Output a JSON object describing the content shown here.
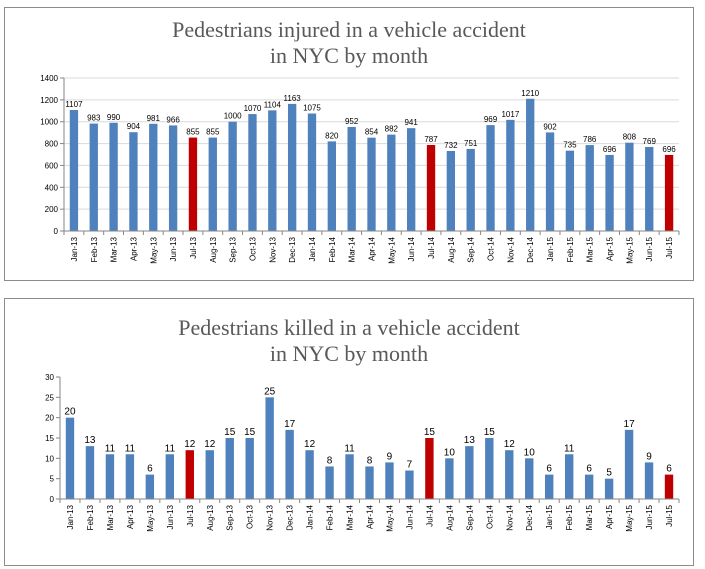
{
  "chart_data": [
    {
      "type": "bar",
      "title": [
        "Pedestrians injured in a vehicle accident",
        "in NYC by month"
      ],
      "xlabel": "",
      "ylabel": "",
      "categories": [
        "Jan-13",
        "Feb-13",
        "Mar-13",
        "Apr-13",
        "May-13",
        "Jun-13",
        "Jul-13",
        "Aug-13",
        "Sep-13",
        "Oct-13",
        "Nov-13",
        "Dec-13",
        "Jan-14",
        "Feb-14",
        "Mar-14",
        "Apr-14",
        "May-14",
        "Jun-14",
        "Jul-14",
        "Aug-14",
        "Sep-14",
        "Oct-14",
        "Nov-14",
        "Dec-14",
        "Jan-15",
        "Feb-15",
        "Mar-15",
        "Apr-15",
        "May-15",
        "Jun-15",
        "Jul-15"
      ],
      "values": [
        1107,
        983,
        990,
        904,
        981,
        966,
        855,
        855,
        1000,
        1070,
        1104,
        1163,
        1075,
        820,
        952,
        854,
        882,
        941,
        787,
        732,
        751,
        969,
        1017,
        1210,
        902,
        735,
        786,
        696,
        808,
        769,
        696
      ],
      "ylim": [
        0,
        1400
      ],
      "yticks": [
        0,
        200,
        400,
        600,
        800,
        1000,
        1200,
        1400
      ],
      "grid": true,
      "legend": "none",
      "colors": {
        "bar": "#4F81BD",
        "highlight": "#C00000"
      },
      "highlight_categories": [
        "Jul-13",
        "Jul-14",
        "Jul-15"
      ]
    },
    {
      "type": "bar",
      "title": [
        "Pedestrians killed in a vehicle accident",
        "in NYC by month"
      ],
      "xlabel": "",
      "ylabel": "",
      "categories": [
        "Jan-13",
        "Feb-13",
        "Mar-13",
        "Apr-13",
        "May-13",
        "Jun-13",
        "Jul-13",
        "Aug-13",
        "Sep-13",
        "Oct-13",
        "Nov-13",
        "Dec-13",
        "Jan-14",
        "Feb-14",
        "Mar-14",
        "Apr-14",
        "May-14",
        "Jun-14",
        "Jul-14",
        "Aug-14",
        "Sep-14",
        "Oct-14",
        "Nov-14",
        "Dec-14",
        "Jan-15",
        "Feb-15",
        "Mar-15",
        "Apr-15",
        "May-15",
        "Jun-15",
        "Jul-15"
      ],
      "values": [
        20,
        13,
        11,
        11,
        6,
        11,
        12,
        12,
        15,
        15,
        25,
        17,
        12,
        8,
        11,
        8,
        9,
        7,
        15,
        10,
        13,
        15,
        12,
        10,
        6,
        11,
        6,
        5,
        17,
        9,
        6
      ],
      "ylim": [
        0,
        30
      ],
      "yticks": [
        0,
        5,
        10,
        15,
        20,
        25,
        30
      ],
      "grid": false,
      "legend": "none",
      "colors": {
        "bar": "#4F81BD",
        "highlight": "#C00000"
      },
      "highlight_categories": [
        "Jul-13",
        "Jul-14",
        "Jul-15"
      ]
    }
  ]
}
